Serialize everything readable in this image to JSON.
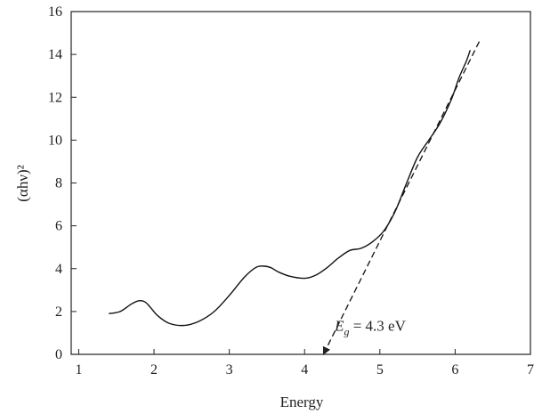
{
  "chart_data": {
    "type": "line",
    "title": "",
    "xlabel": "Energy",
    "ylabel": "(αhν)²",
    "xlim": [
      0.9,
      7
    ],
    "ylim": [
      0,
      16
    ],
    "xticks": [
      1,
      2,
      3,
      4,
      5,
      6,
      7
    ],
    "yticks": [
      0,
      2,
      4,
      6,
      8,
      10,
      12,
      14,
      16
    ],
    "grid": false,
    "series": [
      {
        "style": "solid",
        "x": [
          1.4,
          1.55,
          1.7,
          1.8,
          1.88,
          1.95,
          2.05,
          2.2,
          2.4,
          2.6,
          2.8,
          3.0,
          3.2,
          3.35,
          3.45,
          3.55,
          3.65,
          3.8,
          4.0,
          4.15,
          4.3,
          4.45,
          4.6,
          4.75,
          4.9,
          5.05,
          5.2,
          5.35,
          5.5,
          5.65,
          5.8,
          5.95,
          6.05,
          6.15,
          6.2
        ],
        "y": [
          1.9,
          2.0,
          2.35,
          2.5,
          2.45,
          2.2,
          1.8,
          1.45,
          1.35,
          1.55,
          2.0,
          2.75,
          3.6,
          4.05,
          4.12,
          4.05,
          3.85,
          3.65,
          3.55,
          3.7,
          4.05,
          4.5,
          4.85,
          4.95,
          5.25,
          5.75,
          6.65,
          7.95,
          9.2,
          10.0,
          10.8,
          11.9,
          12.9,
          13.7,
          14.2
        ]
      },
      {
        "style": "dashed",
        "x": [
          4.25,
          6.32
        ],
        "y": [
          0,
          14.6
        ]
      }
    ],
    "annotation": {
      "text_main": "E",
      "text_sub": "g",
      "text_rest": " = 4.3 eV",
      "x": 4.4,
      "y": 1.1
    }
  }
}
